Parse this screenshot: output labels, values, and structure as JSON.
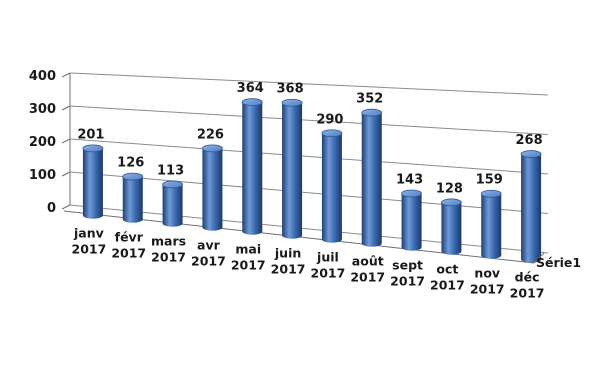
{
  "chart_data": {
    "type": "bar",
    "title": "",
    "xlabel": "",
    "ylabel": "",
    "ylim": [
      0,
      400
    ],
    "yticks": [
      0,
      100,
      200,
      300,
      400
    ],
    "categories": [
      [
        "janv",
        "2017"
      ],
      [
        "févr",
        "2017"
      ],
      [
        "mars",
        "2017"
      ],
      [
        "avr",
        "2017"
      ],
      [
        "mai",
        "2017"
      ],
      [
        "juin",
        "2017"
      ],
      [
        "juil",
        "2017"
      ],
      [
        "août",
        "2017"
      ],
      [
        "sept",
        "2017"
      ],
      [
        "oct",
        "2017"
      ],
      [
        "nov",
        "2017"
      ],
      [
        "déc",
        "2017"
      ]
    ],
    "series": [
      {
        "name": "Série1",
        "values": [
          201,
          126,
          113,
          226,
          364,
          368,
          290,
          352,
          143,
          128,
          159,
          268
        ],
        "color": "#3f6fb5"
      }
    ],
    "data_labels": true,
    "grid": true,
    "legend_position": "right",
    "style": "3d-cylinder"
  }
}
